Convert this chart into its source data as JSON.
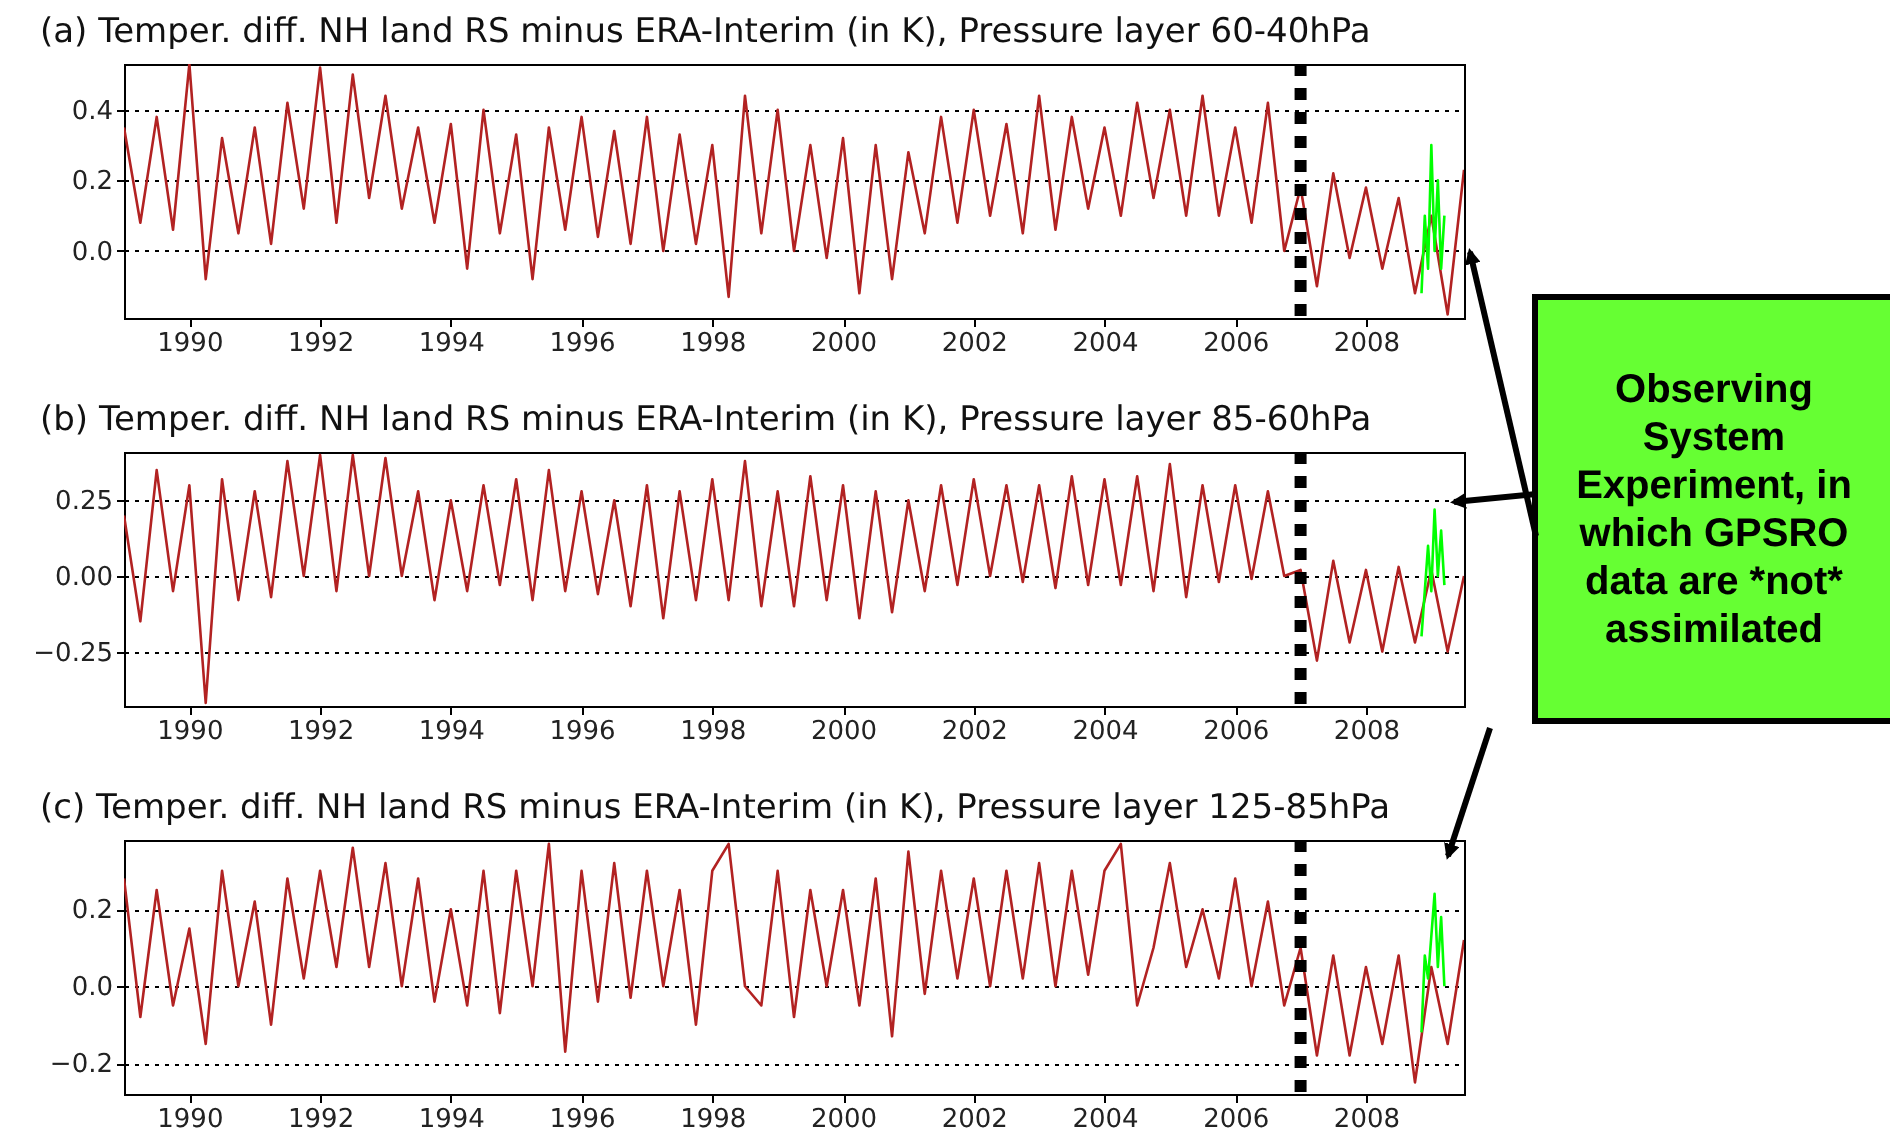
{
  "chart_data": [
    {
      "type": "line",
      "title": "(a) Temper. diff. NH land RS minus ERA-Interim (in K), Pressure layer 60-40hPa",
      "xlim": [
        1989,
        2009.5
      ],
      "xticks": [
        1990,
        1992,
        1994,
        1996,
        1998,
        2000,
        2002,
        2004,
        2006,
        2008
      ],
      "ylim": [
        -0.19,
        0.53
      ],
      "yticks": [
        {
          "value": 0,
          "label": "0.0"
        },
        0.2,
        0.4
      ],
      "grid": "y",
      "ref_lines": [
        {
          "axis": "x",
          "value": 2007.0,
          "color": "#000000",
          "line_style": "dotted"
        }
      ],
      "annotations": [
        "Observing System Experiment, in which GPSRO data are *not* assimilated"
      ],
      "series": [
        {
          "color": "#b22222",
          "x": [
            1989.0,
            1989.25,
            1989.5,
            1989.75,
            1990.0,
            1990.25,
            1990.5,
            1990.75,
            1991.0,
            1991.25,
            1991.5,
            1991.75,
            1992.0,
            1992.25,
            1992.5,
            1992.75,
            1993.0,
            1993.25,
            1993.5,
            1993.75,
            1994.0,
            1994.25,
            1994.5,
            1994.75,
            1995.0,
            1995.25,
            1995.5,
            1995.75,
            1996.0,
            1996.25,
            1996.5,
            1996.75,
            1997.0,
            1997.25,
            1997.5,
            1997.75,
            1998.0,
            1998.25,
            1998.5,
            1998.75,
            1999.0,
            1999.25,
            1999.5,
            1999.75,
            2000.0,
            2000.25,
            2000.5,
            2000.75,
            2001.0,
            2001.25,
            2001.5,
            2001.75,
            2002.0,
            2002.25,
            2002.5,
            2002.75,
            2003.0,
            2003.25,
            2003.5,
            2003.75,
            2004.0,
            2004.25,
            2004.5,
            2004.75,
            2005.0,
            2005.25,
            2005.5,
            2005.75,
            2006.0,
            2006.25,
            2006.5,
            2006.75,
            2007.0,
            2007.25,
            2007.5,
            2007.75,
            2008.0,
            2008.25,
            2008.5,
            2008.75,
            2009.0,
            2009.25,
            2009.5
          ],
          "values": [
            0.35,
            0.08,
            0.38,
            0.06,
            0.53,
            -0.08,
            0.32,
            0.05,
            0.35,
            0.02,
            0.42,
            0.12,
            0.52,
            0.08,
            0.5,
            0.15,
            0.44,
            0.12,
            0.35,
            0.08,
            0.36,
            -0.05,
            0.4,
            0.05,
            0.33,
            -0.08,
            0.35,
            0.06,
            0.38,
            0.04,
            0.34,
            0.02,
            0.38,
            0.0,
            0.33,
            0.02,
            0.3,
            -0.13,
            0.44,
            0.05,
            0.4,
            0.0,
            0.3,
            -0.02,
            0.32,
            -0.12,
            0.3,
            -0.08,
            0.28,
            0.05,
            0.38,
            0.08,
            0.4,
            0.1,
            0.36,
            0.05,
            0.44,
            0.06,
            0.38,
            0.12,
            0.35,
            0.1,
            0.42,
            0.15,
            0.4,
            0.1,
            0.44,
            0.1,
            0.35,
            0.08,
            0.42,
            0.0,
            0.18,
            -0.1,
            0.22,
            -0.02,
            0.18,
            -0.05,
            0.15,
            -0.12,
            0.1,
            -0.18,
            0.23
          ]
        },
        {
          "color": "#00ff00",
          "x": [
            2008.85,
            2008.9,
            2008.95,
            2009.0,
            2009.05,
            2009.1,
            2009.15,
            2009.2
          ],
          "values": [
            -0.12,
            0.1,
            -0.05,
            0.3,
            0.0,
            0.2,
            -0.05,
            0.1
          ]
        }
      ]
    },
    {
      "type": "line",
      "title": "(b) Temper. diff. NH land RS minus ERA-Interim (in K), Pressure layer 85-60hPa",
      "xlim": [
        1989,
        2009.5
      ],
      "xticks": [
        1990,
        1992,
        1994,
        1996,
        1998,
        2000,
        2002,
        2004,
        2006,
        2008
      ],
      "ylim": [
        -0.43,
        0.41
      ],
      "yticks": [
        {
          "value": -0.25,
          "label": "−0.25"
        },
        {
          "value": 0,
          "label": "0.00"
        },
        0.25
      ],
      "grid": "y",
      "ref_lines": [
        {
          "axis": "x",
          "value": 2007.0,
          "color": "#000000",
          "line_style": "dotted"
        }
      ],
      "series": [
        {
          "color": "#b22222",
          "x": [
            1989.0,
            1989.25,
            1989.5,
            1989.75,
            1990.0,
            1990.25,
            1990.5,
            1990.75,
            1991.0,
            1991.25,
            1991.5,
            1991.75,
            1992.0,
            1992.25,
            1992.5,
            1992.75,
            1993.0,
            1993.25,
            1993.5,
            1993.75,
            1994.0,
            1994.25,
            1994.5,
            1994.75,
            1995.0,
            1995.25,
            1995.5,
            1995.75,
            1996.0,
            1996.25,
            1996.5,
            1996.75,
            1997.0,
            1997.25,
            1997.5,
            1997.75,
            1998.0,
            1998.25,
            1998.5,
            1998.75,
            1999.0,
            1999.25,
            1999.5,
            1999.75,
            2000.0,
            2000.25,
            2000.5,
            2000.75,
            2001.0,
            2001.25,
            2001.5,
            2001.75,
            2002.0,
            2002.25,
            2002.5,
            2002.75,
            2003.0,
            2003.25,
            2003.5,
            2003.75,
            2004.0,
            2004.25,
            2004.5,
            2004.75,
            2005.0,
            2005.25,
            2005.5,
            2005.75,
            2006.0,
            2006.25,
            2006.5,
            2006.75,
            2007.0,
            2007.25,
            2007.5,
            2007.75,
            2008.0,
            2008.25,
            2008.5,
            2008.75,
            2009.0,
            2009.25,
            2009.5
          ],
          "values": [
            0.2,
            -0.15,
            0.35,
            -0.05,
            0.3,
            -0.42,
            0.32,
            -0.08,
            0.28,
            -0.07,
            0.38,
            0.0,
            0.4,
            -0.05,
            0.4,
            0.0,
            0.39,
            0.0,
            0.28,
            -0.08,
            0.25,
            -0.05,
            0.3,
            -0.03,
            0.32,
            -0.08,
            0.35,
            -0.05,
            0.28,
            -0.06,
            0.25,
            -0.1,
            0.3,
            -0.14,
            0.28,
            -0.08,
            0.32,
            -0.08,
            0.38,
            -0.1,
            0.28,
            -0.1,
            0.33,
            -0.08,
            0.3,
            -0.14,
            0.28,
            -0.12,
            0.25,
            -0.05,
            0.3,
            -0.03,
            0.32,
            0.0,
            0.3,
            -0.02,
            0.3,
            -0.04,
            0.33,
            -0.03,
            0.32,
            -0.03,
            0.33,
            -0.05,
            0.37,
            -0.07,
            0.3,
            -0.02,
            0.3,
            -0.01,
            0.28,
            0.0,
            0.02,
            -0.28,
            0.05,
            -0.22,
            0.02,
            -0.25,
            0.03,
            -0.22,
            0.02,
            -0.25,
            0.0
          ]
        },
        {
          "color": "#00ff00",
          "x": [
            2008.85,
            2008.95,
            2009.0,
            2009.05,
            2009.1,
            2009.15,
            2009.2
          ],
          "values": [
            -0.2,
            0.1,
            -0.05,
            0.22,
            0.0,
            0.15,
            -0.03
          ]
        }
      ]
    },
    {
      "type": "line",
      "title": "(c) Temper. diff. NH land RS minus ERA-Interim (in K), Pressure layer 125-85hPa",
      "xlim": [
        1989,
        2009.5
      ],
      "xticks": [
        1990,
        1992,
        1994,
        1996,
        1998,
        2000,
        2002,
        2004,
        2006,
        2008
      ],
      "ylim": [
        -0.28,
        0.38
      ],
      "yticks": [
        {
          "value": -0.2,
          "label": "−0.2"
        },
        {
          "value": 0,
          "label": "0.0"
        },
        0.2
      ],
      "grid": "y",
      "ref_lines": [
        {
          "axis": "x",
          "value": 2007.0,
          "color": "#000000",
          "line_style": "dotted"
        }
      ],
      "series": [
        {
          "color": "#b22222",
          "x": [
            1989.0,
            1989.25,
            1989.5,
            1989.75,
            1990.0,
            1990.25,
            1990.5,
            1990.75,
            1991.0,
            1991.25,
            1991.5,
            1991.75,
            1992.0,
            1992.25,
            1992.5,
            1992.75,
            1993.0,
            1993.25,
            1993.5,
            1993.75,
            1994.0,
            1994.25,
            1994.5,
            1994.75,
            1995.0,
            1995.25,
            1995.5,
            1995.75,
            1996.0,
            1996.25,
            1996.5,
            1996.75,
            1997.0,
            1997.25,
            1997.5,
            1997.75,
            1998.0,
            1998.25,
            1998.5,
            1998.75,
            1999.0,
            1999.25,
            1999.5,
            1999.75,
            2000.0,
            2000.25,
            2000.5,
            2000.75,
            2001.0,
            2001.25,
            2001.5,
            2001.75,
            2002.0,
            2002.25,
            2002.5,
            2002.75,
            2003.0,
            2003.25,
            2003.5,
            2003.75,
            2004.0,
            2004.25,
            2004.5,
            2004.75,
            2005.0,
            2005.25,
            2005.5,
            2005.75,
            2006.0,
            2006.25,
            2006.5,
            2006.75,
            2007.0,
            2007.25,
            2007.5,
            2007.75,
            2008.0,
            2008.25,
            2008.5,
            2008.75,
            2009.0,
            2009.25,
            2009.5
          ],
          "values": [
            0.28,
            -0.08,
            0.25,
            -0.05,
            0.15,
            -0.15,
            0.3,
            0.0,
            0.22,
            -0.1,
            0.28,
            0.02,
            0.3,
            0.05,
            0.36,
            0.05,
            0.32,
            0.0,
            0.28,
            -0.04,
            0.2,
            -0.05,
            0.3,
            -0.07,
            0.3,
            0.0,
            0.37,
            -0.17,
            0.3,
            -0.04,
            0.32,
            -0.03,
            0.3,
            0.0,
            0.25,
            -0.1,
            0.3,
            0.37,
            0.0,
            -0.05,
            0.3,
            -0.08,
            0.25,
            0.0,
            0.25,
            -0.05,
            0.28,
            -0.13,
            0.35,
            -0.02,
            0.3,
            0.02,
            0.28,
            0.0,
            0.3,
            0.02,
            0.32,
            0.0,
            0.3,
            0.03,
            0.3,
            0.37,
            -0.05,
            0.1,
            0.32,
            0.05,
            0.2,
            0.02,
            0.28,
            0.0,
            0.22,
            -0.05,
            0.1,
            -0.18,
            0.08,
            -0.18,
            0.05,
            -0.15,
            0.08,
            -0.25,
            0.05,
            -0.15,
            0.12
          ]
        },
        {
          "color": "#00ff00",
          "x": [
            2008.85,
            2008.9,
            2008.95,
            2009.05,
            2009.1,
            2009.15,
            2009.2
          ],
          "values": [
            -0.12,
            0.08,
            0.02,
            0.24,
            0.05,
            0.18,
            0.0
          ]
        }
      ]
    }
  ]
}
